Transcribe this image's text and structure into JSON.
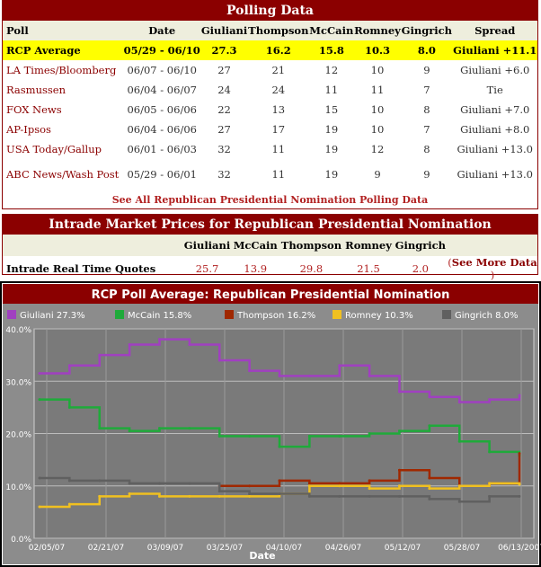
{
  "polling": {
    "title": "Polling Data",
    "headers": [
      "Poll",
      "Date",
      "Giuliani",
      "Thompson",
      "McCain",
      "Romney",
      "Gingrich",
      "Spread"
    ],
    "average": {
      "poll": "RCP Average",
      "date": "05/29 - 06/10",
      "values": [
        "27.3",
        "16.2",
        "15.8",
        "10.3",
        "8.0"
      ],
      "spread": "Giuliani +11.1"
    },
    "rows": [
      {
        "poll": "LA Times/Bloomberg",
        "date": "06/07 - 06/10",
        "values": [
          "27",
          "21",
          "12",
          "10",
          "9"
        ],
        "spread": "Giuliani +6.0"
      },
      {
        "poll": "Rasmussen",
        "date": "06/04 - 06/07",
        "values": [
          "24",
          "24",
          "11",
          "11",
          "7"
        ],
        "spread": "Tie"
      },
      {
        "poll": "FOX News",
        "date": "06/05 - 06/06",
        "values": [
          "22",
          "13",
          "15",
          "10",
          "8"
        ],
        "spread": "Giuliani +7.0"
      },
      {
        "poll": "AP-Ipsos",
        "date": "06/04 - 06/06",
        "values": [
          "27",
          "17",
          "19",
          "10",
          "7"
        ],
        "spread": "Giuliani +8.0"
      },
      {
        "poll": "USA Today/Gallup",
        "date": "06/01 - 06/03",
        "values": [
          "32",
          "11",
          "19",
          "12",
          "8"
        ],
        "spread": "Giuliani +13.0"
      },
      {
        "poll": "ABC News/Wash Post",
        "date": "05/29 - 06/01",
        "values": [
          "32",
          "11",
          "19",
          "9",
          "9"
        ],
        "spread": "Giuliani +13.0"
      }
    ],
    "see_all": "See All Republican Presidential Nomination Polling Data"
  },
  "intrade": {
    "title": "Intrade Market Prices for Republican Presidential Nomination",
    "headers": [
      "Giuliani",
      "McCain",
      "Thompson",
      "Romney",
      "Gingrich"
    ],
    "label": "Intrade Real Time Quotes",
    "values": [
      "25.7",
      "13.9",
      "29.8",
      "21.5",
      "2.0"
    ],
    "more_open": "(",
    "more": "See More Data",
    "more_close": ")"
  },
  "colors": {
    "brand": "#8b0000",
    "giuliani": "#a040c0",
    "mccain": "#1faa3a",
    "thompson": "#a02800",
    "romney": "#f0c020",
    "gingrich": "#606060"
  },
  "chart_data": {
    "type": "line",
    "title": "RCP Poll Average: Republican Presidential Nomination",
    "xlabel": "Date",
    "ylabel": "",
    "ylim": [
      0,
      40
    ],
    "yticks": [
      "0.0%",
      "10.0%",
      "20.0%",
      "30.0%",
      "40.0%"
    ],
    "xticks": [
      "02/05/07",
      "02/21/07",
      "03/09/07",
      "03/25/07",
      "04/10/07",
      "04/26/07",
      "05/12/07",
      "05/28/07",
      "06/13/2007"
    ],
    "legend_position": "top",
    "grid": true,
    "x": [
      "02/05/07",
      "02/13/07",
      "02/21/07",
      "03/01/07",
      "03/09/07",
      "03/17/07",
      "03/25/07",
      "04/02/07",
      "04/10/07",
      "04/18/07",
      "04/26/07",
      "05/04/07",
      "05/12/07",
      "05/20/07",
      "05/28/07",
      "06/05/07",
      "06/13/07"
    ],
    "series": [
      {
        "name": "Giuliani 27.3%",
        "color": "#a040c0",
        "values": [
          31.5,
          33,
          35,
          37,
          38,
          37,
          34,
          32,
          31,
          31,
          33,
          31,
          28,
          27,
          26,
          26.5,
          27.3
        ]
      },
      {
        "name": "McCain 15.8%",
        "color": "#1faa3a",
        "values": [
          26.5,
          25,
          21,
          20.5,
          21,
          21,
          19.5,
          19.5,
          17.5,
          19.5,
          19.5,
          20,
          20.5,
          21.5,
          18.5,
          16.5,
          15.8
        ]
      },
      {
        "name": "Thompson 16.2%",
        "color": "#a02800",
        "values": [
          null,
          null,
          null,
          null,
          null,
          null,
          10,
          10,
          11,
          10.5,
          10.5,
          11,
          13,
          11.5,
          10,
          10.5,
          16.2
        ]
      },
      {
        "name": "Romney 10.3%",
        "color": "#f0c020",
        "values": [
          6,
          6.5,
          8,
          8.5,
          8,
          8,
          8,
          8,
          8.5,
          10,
          10,
          9.5,
          10,
          9.5,
          10,
          10.5,
          10.3
        ]
      },
      {
        "name": "Gingrich 8.0%",
        "color": "#606060",
        "values": [
          11.5,
          11,
          11,
          10.5,
          10.5,
          10.5,
          9,
          8.5,
          8.5,
          8,
          8,
          8,
          8,
          7.5,
          7,
          8,
          8.0
        ]
      }
    ]
  }
}
